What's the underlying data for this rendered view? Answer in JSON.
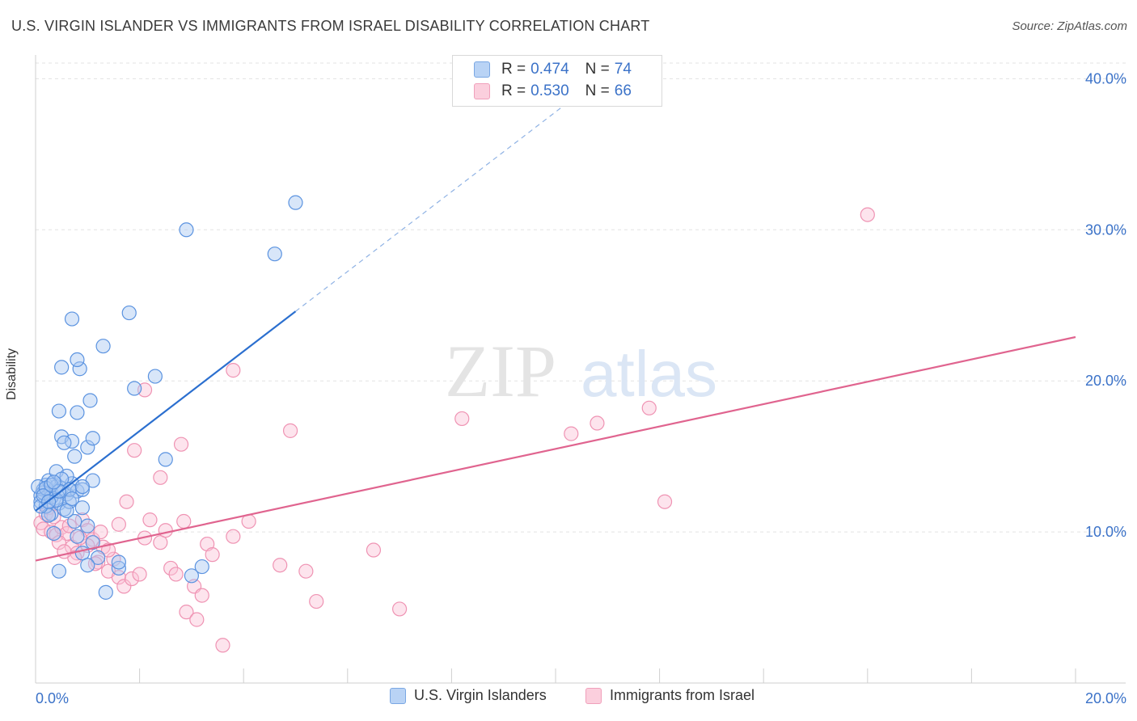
{
  "title": "U.S. VIRGIN ISLANDER VS IMMIGRANTS FROM ISRAEL DISABILITY CORRELATION CHART",
  "source": "Source: ZipAtlas.com",
  "watermark": {
    "zip": "ZIP",
    "atlas": "atlas"
  },
  "legend": {
    "r_label": "R =",
    "n_label": "N =",
    "rows": [
      {
        "r": "0.474",
        "n": "74",
        "color": "#8ab4ec"
      },
      {
        "r": "0.530",
        "n": "66",
        "color": "#f4a9c2"
      }
    ]
  },
  "chart_data": {
    "type": "scatter",
    "ylabel": "Disability",
    "xlim": [
      0,
      20
    ],
    "ylim": [
      0,
      42
    ],
    "x_tick_labels": [
      "0.0%",
      "20.0%"
    ],
    "y_ticks": [
      10,
      20,
      30,
      40
    ],
    "y_tick_labels": [
      "10.0%",
      "20.0%",
      "30.0%",
      "40.0%"
    ],
    "grid": true,
    "series": [
      {
        "name": "U.S. Virgin Islanders",
        "color": "#5b93e0",
        "line_color": "#2b6fcf",
        "trend": {
          "x0": 0.0,
          "y0": 11.4,
          "x1": 5.0,
          "y1": 24.6,
          "dash_to_x": 11.0
        },
        "points": [
          [
            0.1,
            12.4
          ],
          [
            0.15,
            12.8
          ],
          [
            0.2,
            13.1
          ],
          [
            0.1,
            12.0
          ],
          [
            0.3,
            12.6
          ],
          [
            0.25,
            13.4
          ],
          [
            0.35,
            12.2
          ],
          [
            0.4,
            13.0
          ],
          [
            0.5,
            12.9
          ],
          [
            0.45,
            11.9
          ],
          [
            0.6,
            12.5
          ],
          [
            0.7,
            13.2
          ],
          [
            0.8,
            12.7
          ],
          [
            0.55,
            11.5
          ],
          [
            0.65,
            12.0
          ],
          [
            0.3,
            11.2
          ],
          [
            0.2,
            11.7
          ],
          [
            0.4,
            14.0
          ],
          [
            0.6,
            13.7
          ],
          [
            0.9,
            12.8
          ],
          [
            0.5,
            16.3
          ],
          [
            0.7,
            16.0
          ],
          [
            0.55,
            15.9
          ],
          [
            1.0,
            15.6
          ],
          [
            0.75,
            15.0
          ],
          [
            1.1,
            16.2
          ],
          [
            0.45,
            18.0
          ],
          [
            0.8,
            17.9
          ],
          [
            1.05,
            18.7
          ],
          [
            0.5,
            20.9
          ],
          [
            0.85,
            20.8
          ],
          [
            0.8,
            21.4
          ],
          [
            1.3,
            22.3
          ],
          [
            0.7,
            24.1
          ],
          [
            1.8,
            24.5
          ],
          [
            2.9,
            30.0
          ],
          [
            4.6,
            28.4
          ],
          [
            5.0,
            31.8
          ],
          [
            1.9,
            19.5
          ],
          [
            2.3,
            20.3
          ],
          [
            2.5,
            14.8
          ],
          [
            1.1,
            13.4
          ],
          [
            0.9,
            11.6
          ],
          [
            0.75,
            10.7
          ],
          [
            1.0,
            10.4
          ],
          [
            0.8,
            9.7
          ],
          [
            1.1,
            9.3
          ],
          [
            0.9,
            8.6
          ],
          [
            1.2,
            8.3
          ],
          [
            1.0,
            7.8
          ],
          [
            1.6,
            7.6
          ],
          [
            1.6,
            8.0
          ],
          [
            0.45,
            7.4
          ],
          [
            1.35,
            6.0
          ],
          [
            3.0,
            7.1
          ],
          [
            3.2,
            7.7
          ],
          [
            0.35,
            9.9
          ],
          [
            0.25,
            11.1
          ],
          [
            0.6,
            11.4
          ],
          [
            0.15,
            12.6
          ],
          [
            0.05,
            13.0
          ],
          [
            0.1,
            11.7
          ],
          [
            0.3,
            12.3
          ],
          [
            0.2,
            12.9
          ],
          [
            0.4,
            12.1
          ],
          [
            0.5,
            13.5
          ],
          [
            0.65,
            12.8
          ],
          [
            0.7,
            12.2
          ],
          [
            0.15,
            12.4
          ],
          [
            0.3,
            13.1
          ],
          [
            0.45,
            12.7
          ],
          [
            0.25,
            12.0
          ],
          [
            0.35,
            13.3
          ],
          [
            0.9,
            13.0
          ]
        ]
      },
      {
        "name": "Immigrants from Israel",
        "color": "#f4a9c2",
        "line_color": "#e0648f",
        "trend": {
          "x0": 0.0,
          "y0": 8.1,
          "x1": 20.0,
          "y1": 22.9
        },
        "points": [
          [
            0.1,
            10.6
          ],
          [
            0.2,
            11.2
          ],
          [
            0.15,
            10.2
          ],
          [
            0.3,
            10.0
          ],
          [
            0.25,
            11.6
          ],
          [
            0.4,
            9.8
          ],
          [
            0.5,
            10.3
          ],
          [
            0.6,
            9.9
          ],
          [
            0.45,
            9.3
          ],
          [
            0.7,
            9.0
          ],
          [
            0.8,
            8.6
          ],
          [
            0.75,
            8.3
          ],
          [
            0.9,
            10.8
          ],
          [
            1.0,
            10.1
          ],
          [
            1.1,
            9.5
          ],
          [
            1.2,
            8.0
          ],
          [
            1.3,
            9.0
          ],
          [
            1.4,
            7.4
          ],
          [
            1.5,
            8.2
          ],
          [
            1.6,
            7.0
          ],
          [
            1.7,
            6.4
          ],
          [
            1.85,
            6.9
          ],
          [
            2.0,
            7.2
          ],
          [
            1.6,
            10.5
          ],
          [
            1.75,
            12.0
          ],
          [
            2.1,
            9.6
          ],
          [
            2.2,
            10.8
          ],
          [
            2.4,
            9.3
          ],
          [
            2.5,
            10.1
          ],
          [
            2.6,
            7.6
          ],
          [
            2.7,
            7.2
          ],
          [
            2.85,
            10.7
          ],
          [
            2.9,
            4.7
          ],
          [
            3.05,
            6.4
          ],
          [
            3.2,
            5.8
          ],
          [
            3.3,
            9.2
          ],
          [
            3.4,
            8.5
          ],
          [
            3.6,
            2.5
          ],
          [
            3.8,
            9.7
          ],
          [
            4.1,
            10.7
          ],
          [
            4.7,
            7.8
          ],
          [
            4.9,
            16.7
          ],
          [
            5.2,
            7.4
          ],
          [
            5.4,
            5.4
          ],
          [
            6.5,
            8.8
          ],
          [
            7.0,
            4.9
          ],
          [
            8.2,
            17.5
          ],
          [
            10.3,
            16.5
          ],
          [
            10.8,
            17.2
          ],
          [
            11.8,
            18.2
          ],
          [
            12.1,
            12.0
          ],
          [
            16.0,
            31.0
          ],
          [
            3.8,
            20.7
          ],
          [
            2.1,
            19.4
          ],
          [
            1.9,
            15.4
          ],
          [
            2.8,
            15.8
          ],
          [
            2.4,
            13.6
          ],
          [
            1.0,
            9.1
          ],
          [
            0.55,
            8.7
          ],
          [
            1.15,
            7.9
          ],
          [
            0.35,
            11.0
          ],
          [
            0.65,
            10.4
          ],
          [
            0.85,
            9.6
          ],
          [
            1.4,
            8.8
          ],
          [
            1.25,
            10.0
          ],
          [
            3.1,
            4.2
          ]
        ]
      }
    ]
  }
}
